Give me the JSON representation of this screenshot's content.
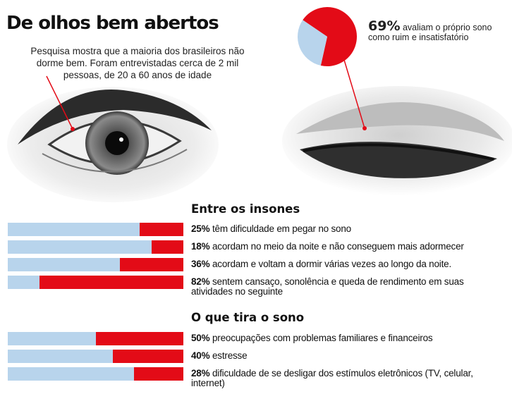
{
  "header": {
    "title": "De olhos bem abertos",
    "subtitle": "Pesquisa mostra que a maioria dos brasileiros não dorme bem. Foram entrevistadas cerca de 2 mil pessoas, de 20 a 60 anos de idade"
  },
  "top_stat": {
    "percent_label": "69%",
    "text": "avaliam o próprio sono como ruim e insatisfatório"
  },
  "colors": {
    "highlight": "#e30b17",
    "base": "#b8d4ec"
  },
  "chart_data": [
    {
      "type": "pie",
      "slices": [
        {
          "label": "avaliam o próprio sono como ruim e insatisfatório",
          "value": 69
        },
        {
          "label": "",
          "value": 31
        }
      ],
      "colors": [
        "#e30b17",
        "#b8d4ec"
      ]
    },
    {
      "type": "bar",
      "orientation": "horizontal",
      "title": "Entre os insones",
      "ylim": [
        0,
        100
      ],
      "rows": [
        {
          "pct_label": "25%",
          "value": 25,
          "text": "têm dificuldade em pegar no sono"
        },
        {
          "pct_label": "18%",
          "value": 18,
          "text": "acordam no meio da noite e não conseguem mais adormecer"
        },
        {
          "pct_label": "36%",
          "value": 36,
          "text": "acordam e voltam a dormir várias vezes ao longo da noite."
        },
        {
          "pct_label": "82%",
          "value": 82,
          "text": "sentem cansaço, sonolência e queda de rendimento em suas atividades no seguinte"
        }
      ]
    },
    {
      "type": "bar",
      "orientation": "horizontal",
      "title": "O que tira o sono",
      "ylim": [
        0,
        100
      ],
      "rows": [
        {
          "pct_label": "50%",
          "value": 50,
          "text": "preocupações com problemas familiares e financeiros"
        },
        {
          "pct_label": "40%",
          "value": 40,
          "text": "estresse"
        },
        {
          "pct_label": "28%",
          "value": 28,
          "text": "dificuldade de se desligar dos estímulos eletrônicos (TV, celular, internet)"
        }
      ]
    }
  ]
}
